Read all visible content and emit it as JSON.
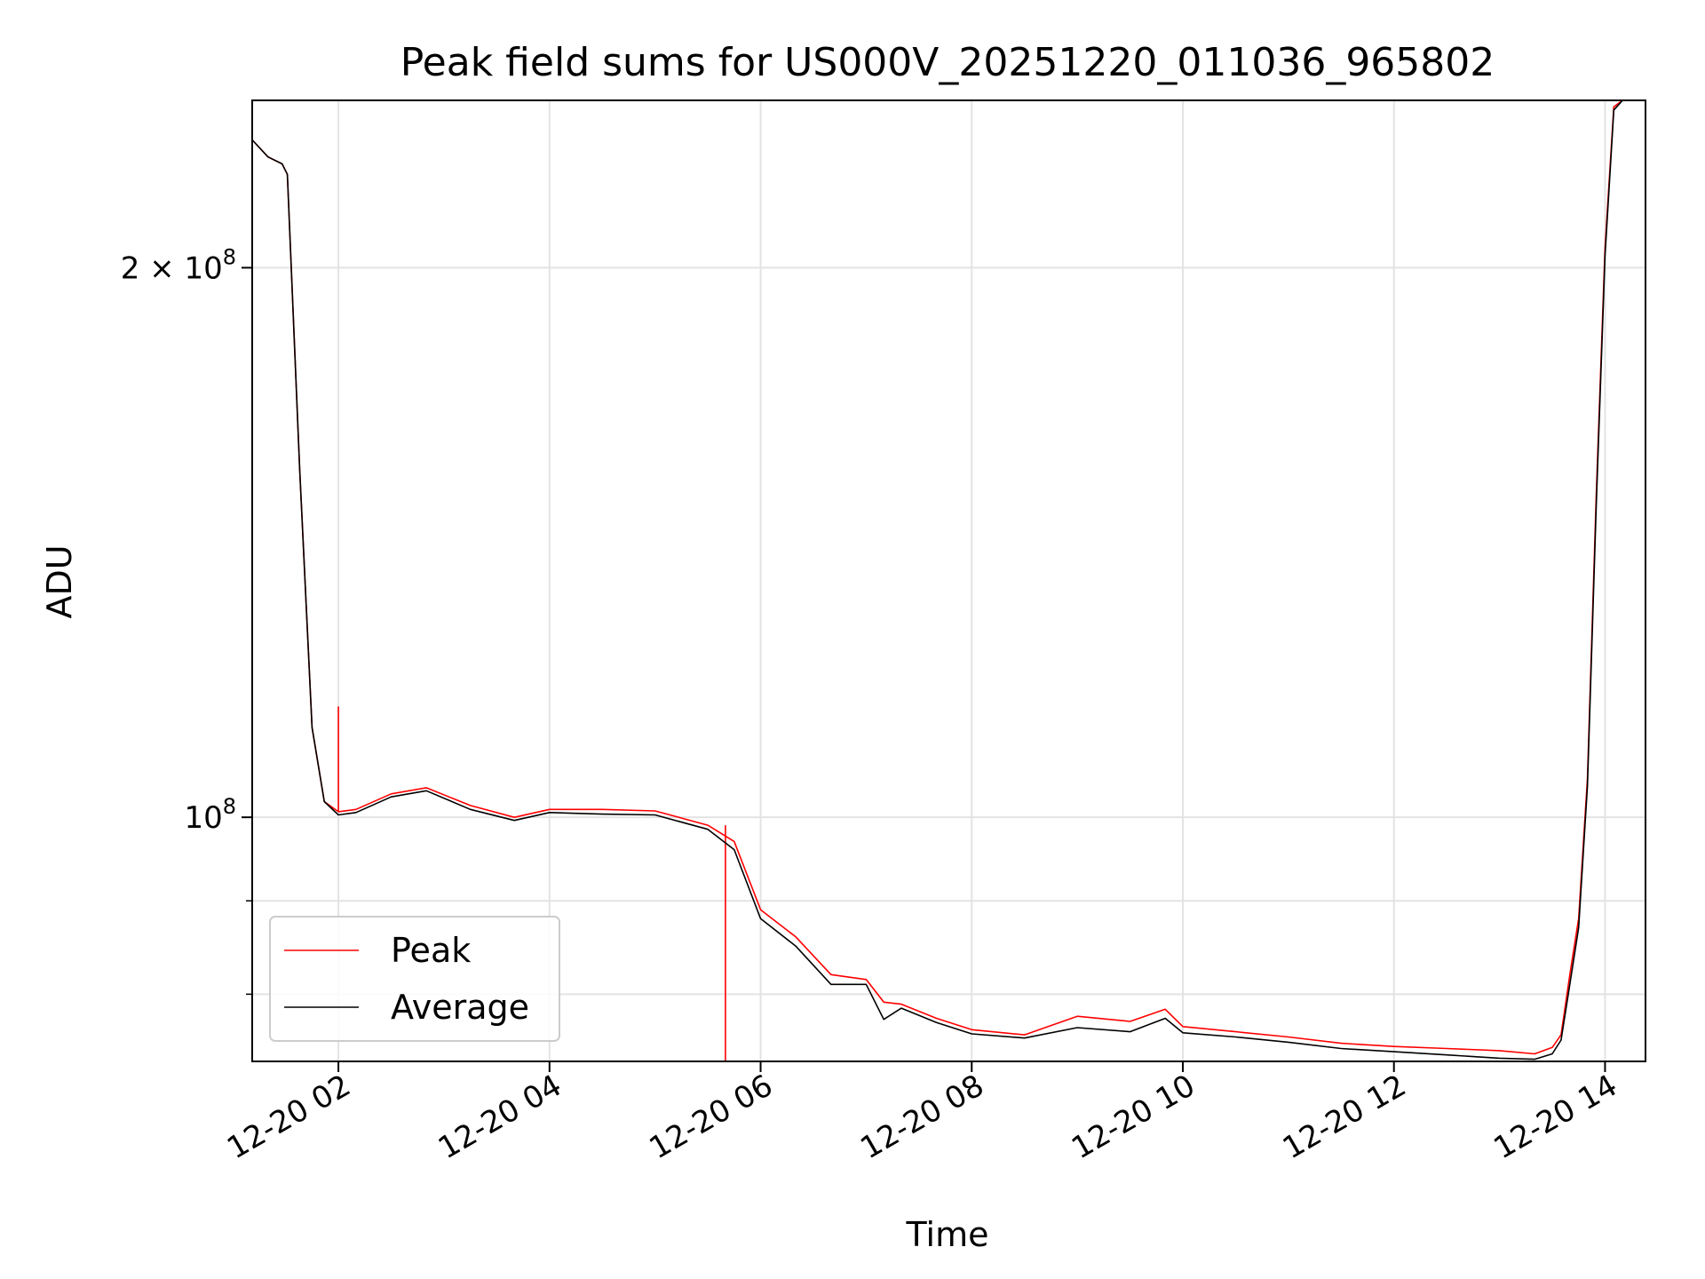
{
  "chart_data": {
    "type": "line",
    "title": "Peak field sums for US000V_20251220_011036_965802",
    "xlabel": "Time",
    "ylabel": "ADU",
    "yscale": "log",
    "xlim": [
      "12-20 01:11",
      "12-20 14:23"
    ],
    "ylim": [
      73500000,
      247000000
    ],
    "grid": true,
    "legend_position": "lower-left",
    "x_ticks": [
      {
        "value": "12-20 02:00",
        "label": "12-20 02"
      },
      {
        "value": "12-20 04:00",
        "label": "12-20 04"
      },
      {
        "value": "12-20 06:00",
        "label": "12-20 06"
      },
      {
        "value": "12-20 08:00",
        "label": "12-20 08"
      },
      {
        "value": "12-20 10:00",
        "label": "12-20 10"
      },
      {
        "value": "12-20 12:00",
        "label": "12-20 12"
      },
      {
        "value": "12-20 14:00",
        "label": "12-20 14"
      }
    ],
    "y_ticks": [
      {
        "value": 100000000,
        "label_base": "10",
        "label_exp": "8",
        "label_prefix": ""
      },
      {
        "value": 200000000,
        "label_base": "10",
        "label_exp": "8",
        "label_prefix": "2 × "
      }
    ],
    "y_minor_ticks": [
      80000000,
      90000000
    ],
    "series": [
      {
        "name": "Peak",
        "color": "#ff0000",
        "x": [
          "12-20 01:11",
          "12-20 01:20",
          "12-20 01:28",
          "12-20 01:31",
          "12-20 01:38",
          "12-20 01:45",
          "12-20 01:52",
          "12-20 02:00",
          "12-20 02:10",
          "12-20 02:30",
          "12-20 02:50",
          "12-20 03:15",
          "12-20 03:40",
          "12-20 04:00",
          "12-20 04:30",
          "12-20 05:00",
          "12-20 05:30",
          "12-20 05:45",
          "12-20 06:00",
          "12-20 06:20",
          "12-20 06:40",
          "12-20 07:00",
          "12-20 07:10",
          "12-20 07:20",
          "12-20 07:40",
          "12-20 08:00",
          "12-20 08:30",
          "12-20 09:00",
          "12-20 09:30",
          "12-20 09:50",
          "12-20 10:00",
          "12-20 10:30",
          "12-20 11:00",
          "12-20 11:30",
          "12-20 12:00",
          "12-20 12:30",
          "12-20 13:00",
          "12-20 13:20",
          "12-20 13:30",
          "12-20 13:35",
          "12-20 13:40",
          "12-20 13:45",
          "12-20 13:50",
          "12-20 13:55",
          "12-20 14:00",
          "12-20 14:05",
          "12-20 14:10"
        ],
        "y": [
          235000000,
          230000000,
          228000000,
          225000000,
          155000000,
          112000000,
          102000000,
          100700000,
          101000000,
          103000000,
          103800000,
          101500000,
          100000000,
          101000000,
          101000000,
          100800000,
          99000000,
          97000000,
          89000000,
          86000000,
          82000000,
          81500000,
          79200000,
          79000000,
          77600000,
          76500000,
          76000000,
          77800000,
          77300000,
          78500000,
          76800000,
          76300000,
          75800000,
          75200000,
          74900000,
          74700000,
          74500000,
          74200000,
          74800000,
          76000000,
          82000000,
          88000000,
          105000000,
          150000000,
          205000000,
          245000000,
          247000000
        ],
        "spikes": [
          {
            "x": "12-20 02:00",
            "y": 115000000
          },
          {
            "x": "12-20 05:40",
            "y": 99000000
          }
        ]
      },
      {
        "name": "Average",
        "color": "#000000",
        "x": [
          "12-20 01:11",
          "12-20 01:20",
          "12-20 01:28",
          "12-20 01:31",
          "12-20 01:38",
          "12-20 01:45",
          "12-20 01:52",
          "12-20 02:00",
          "12-20 02:10",
          "12-20 02:30",
          "12-20 02:50",
          "12-20 03:15",
          "12-20 03:40",
          "12-20 04:00",
          "12-20 04:30",
          "12-20 05:00",
          "12-20 05:30",
          "12-20 05:45",
          "12-20 06:00",
          "12-20 06:20",
          "12-20 06:40",
          "12-20 07:00",
          "12-20 07:10",
          "12-20 07:20",
          "12-20 07:40",
          "12-20 08:00",
          "12-20 08:30",
          "12-20 09:00",
          "12-20 09:30",
          "12-20 09:50",
          "12-20 10:00",
          "12-20 10:30",
          "12-20 11:00",
          "12-20 11:30",
          "12-20 12:00",
          "12-20 12:30",
          "12-20 13:00",
          "12-20 13:20",
          "12-20 13:30",
          "12-20 13:35",
          "12-20 13:40",
          "12-20 13:45",
          "12-20 13:50",
          "12-20 13:55",
          "12-20 14:00",
          "12-20 14:05",
          "12-20 14:10"
        ],
        "y": [
          235000000,
          230000000,
          228000000,
          225000000,
          155000000,
          112000000,
          102000000,
          100300000,
          100600000,
          102600000,
          103400000,
          101000000,
          99600000,
          100600000,
          100400000,
          100300000,
          98500000,
          96000000,
          88000000,
          85000000,
          81000000,
          81000000,
          77500000,
          78600000,
          77200000,
          76100000,
          75700000,
          76700000,
          76300000,
          77600000,
          76200000,
          75800000,
          75300000,
          74700000,
          74400000,
          74100000,
          73800000,
          73700000,
          74200000,
          75500000,
          81000000,
          87000000,
          104000000,
          148000000,
          203000000,
          244000000,
          247000000
        ]
      }
    ]
  }
}
